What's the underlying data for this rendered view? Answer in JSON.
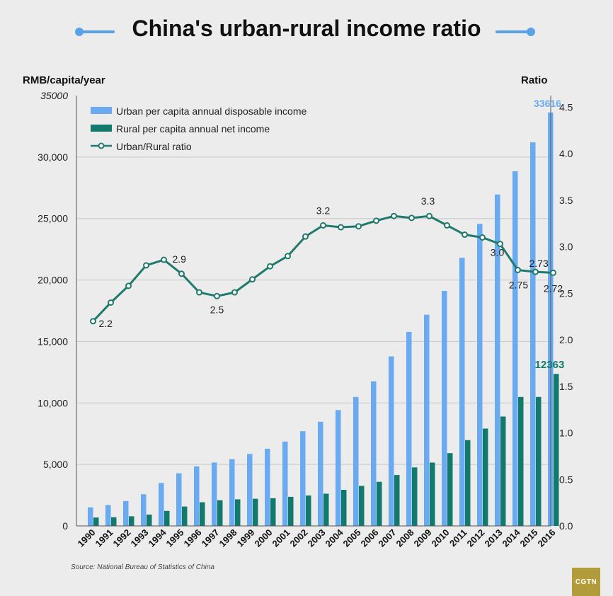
{
  "title": "China's urban-rural income ratio",
  "source": "Source: National Bureau of Statistics of China",
  "logo_text": "CGTN",
  "colors": {
    "urban": "#6aaaf0",
    "rural": "#127a6d",
    "ratio": "#1f7a6d",
    "title_accent": "#5aa2e8",
    "logo": "#b29b3a",
    "background": "#ececec"
  },
  "chart_data": {
    "type": "bar",
    "y_left_label": "RMB/capita/year",
    "y_right_label": "Ratio",
    "y_left_ticks": [
      "0",
      "5,000",
      "10,000",
      "15,000",
      "20,000",
      "25,000",
      "30,000",
      "35000"
    ],
    "y_right_ticks": [
      "0.0",
      "0.5",
      "1.0",
      "1.5",
      "2.0",
      "2.5",
      "3.0",
      "3.5",
      "4.0",
      "4.5"
    ],
    "ylim_left": [
      0,
      35000
    ],
    "ylim_right": [
      0,
      4.625
    ],
    "grid": "horizontal",
    "legend_placement": "top-left",
    "categories": [
      "1990",
      "1991",
      "1992",
      "1993",
      "1994",
      "1995",
      "1996",
      "1997",
      "1998",
      "1999",
      "2000",
      "2001",
      "2002",
      "2003",
      "2004",
      "2005",
      "2006",
      "2007",
      "2008",
      "2009",
      "2010",
      "2011",
      "2012",
      "2013",
      "2014",
      "2015",
      "2016"
    ],
    "series": [
      {
        "name": "Urban per capita annual disposable income",
        "axis": "left",
        "type": "bar",
        "values": [
          1510,
          1700,
          2027,
          2577,
          3496,
          4283,
          4839,
          5160,
          5425,
          5854,
          6280,
          6860,
          7703,
          8472,
          9422,
          10493,
          11759,
          13786,
          15781,
          17175,
          19109,
          21810,
          24565,
          26955,
          28844,
          31195,
          33616
        ]
      },
      {
        "name": "Rural per capita annual net income",
        "axis": "left",
        "type": "bar",
        "values": [
          686,
          709,
          784,
          922,
          1221,
          1578,
          1926,
          2090,
          2162,
          2210,
          2253,
          2366,
          2476,
          2622,
          2936,
          3255,
          3587,
          4140,
          4761,
          5153,
          5919,
          6977,
          7917,
          8896,
          10489,
          10490,
          12363
        ]
      },
      {
        "name": "Urban/Rural ratio",
        "axis": "right",
        "type": "line",
        "values": [
          2.2,
          2.4,
          2.58,
          2.8,
          2.86,
          2.71,
          2.51,
          2.47,
          2.51,
          2.65,
          2.79,
          2.9,
          3.11,
          3.23,
          3.21,
          3.22,
          3.28,
          3.33,
          3.31,
          3.33,
          3.23,
          3.13,
          3.1,
          3.03,
          2.75,
          2.73,
          2.72
        ]
      }
    ],
    "annotations": [
      {
        "text": "2.2",
        "series": 2,
        "index": 0
      },
      {
        "text": "2.9",
        "series": 2,
        "index": 4
      },
      {
        "text": "2.5",
        "series": 2,
        "index": 7
      },
      {
        "text": "3.2",
        "series": 2,
        "index": 13
      },
      {
        "text": "3.3",
        "series": 2,
        "index": 19
      },
      {
        "text": "3.0",
        "series": 2,
        "index": 23
      },
      {
        "text": "2.75",
        "series": 2,
        "index": 24
      },
      {
        "text": "2.73",
        "series": 2,
        "index": 25
      },
      {
        "text": "2.72",
        "series": 2,
        "index": 26
      },
      {
        "text": "33616",
        "series": 0,
        "index": 26
      },
      {
        "text": "12363",
        "series": 1,
        "index": 26
      }
    ]
  }
}
